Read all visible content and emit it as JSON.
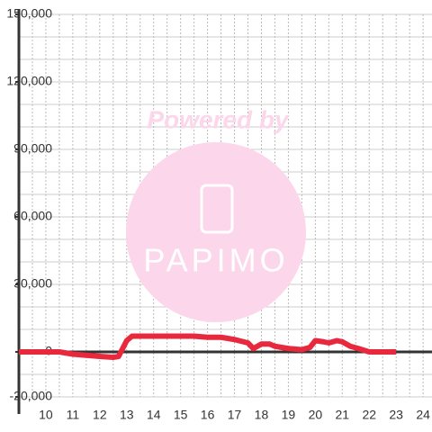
{
  "chart_data": {
    "type": "line",
    "watermark": [
      "Powered by",
      "PAPIMO"
    ],
    "x": [
      9,
      10.5,
      11,
      11.5,
      12,
      12.5,
      12.7,
      13,
      13.2,
      14,
      15,
      15.5,
      16,
      16.5,
      17,
      17.5,
      17.7,
      18,
      18.3,
      18.5,
      19,
      19.5,
      19.8,
      20,
      20.3,
      20.5,
      20.8,
      21,
      21.3,
      21.6,
      22,
      23
    ],
    "series": [
      {
        "name": null,
        "color": "#e8283c",
        "values": [
          0,
          0,
          -1000,
          -1500,
          -2000,
          -2400,
          -2000,
          5000,
          7000,
          7000,
          7000,
          7000,
          6500,
          6500,
          5500,
          4000,
          1500,
          3500,
          3500,
          2500,
          1500,
          1000,
          2000,
          5000,
          4500,
          4000,
          5000,
          4500,
          2500,
          1500,
          0,
          0
        ]
      }
    ],
    "xlim": [
      9,
      24.33
    ],
    "xticks": [
      10,
      11,
      12,
      13,
      14,
      15,
      16,
      17,
      18,
      19,
      20,
      21,
      22,
      23,
      24
    ],
    "xgrid": [
      9.5,
      10,
      10.5,
      11,
      11.5,
      12,
      12.5,
      13,
      13.5,
      14,
      14.5,
      15,
      15.5,
      16,
      16.5,
      17,
      17.5,
      18,
      18.5,
      19,
      19.5,
      20,
      20.5,
      21,
      21.5,
      22,
      22.5,
      23,
      23.5,
      24
    ],
    "ylim": [
      -20000,
      150000
    ],
    "yticks": [
      {
        "value": -20000,
        "label": "-20,000"
      },
      0,
      {
        "value": 30000,
        "label": "30,000"
      },
      {
        "value": 60000,
        "label": "60,000"
      },
      {
        "value": 90000,
        "label": "90,000"
      },
      {
        "value": 120000,
        "label": "120,000"
      },
      {
        "value": 150000,
        "label": "150,000"
      }
    ],
    "ygrid": [
      -20000,
      -10000,
      10000,
      20000,
      30000,
      40000,
      50000,
      60000,
      70000,
      80000,
      90000,
      100000,
      110000,
      120000,
      130000,
      140000,
      150000
    ],
    "grid": true
  }
}
